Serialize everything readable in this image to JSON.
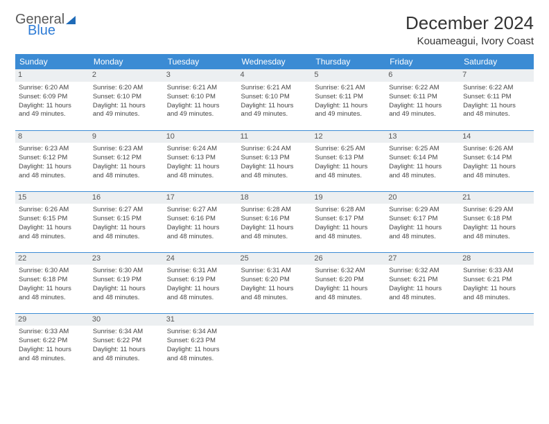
{
  "brand": {
    "word1": "General",
    "word2": "Blue"
  },
  "title": "December 2024",
  "location": "Kouameagui, Ivory Coast",
  "header_bg": "#3b8bd4",
  "daynum_bg": "#eceff1",
  "weekdays": [
    "Sunday",
    "Monday",
    "Tuesday",
    "Wednesday",
    "Thursday",
    "Friday",
    "Saturday"
  ],
  "weeks": [
    [
      {
        "n": "1",
        "sr": "Sunrise: 6:20 AM",
        "ss": "Sunset: 6:09 PM",
        "d1": "Daylight: 11 hours",
        "d2": "and 49 minutes."
      },
      {
        "n": "2",
        "sr": "Sunrise: 6:20 AM",
        "ss": "Sunset: 6:10 PM",
        "d1": "Daylight: 11 hours",
        "d2": "and 49 minutes."
      },
      {
        "n": "3",
        "sr": "Sunrise: 6:21 AM",
        "ss": "Sunset: 6:10 PM",
        "d1": "Daylight: 11 hours",
        "d2": "and 49 minutes."
      },
      {
        "n": "4",
        "sr": "Sunrise: 6:21 AM",
        "ss": "Sunset: 6:10 PM",
        "d1": "Daylight: 11 hours",
        "d2": "and 49 minutes."
      },
      {
        "n": "5",
        "sr": "Sunrise: 6:21 AM",
        "ss": "Sunset: 6:11 PM",
        "d1": "Daylight: 11 hours",
        "d2": "and 49 minutes."
      },
      {
        "n": "6",
        "sr": "Sunrise: 6:22 AM",
        "ss": "Sunset: 6:11 PM",
        "d1": "Daylight: 11 hours",
        "d2": "and 49 minutes."
      },
      {
        "n": "7",
        "sr": "Sunrise: 6:22 AM",
        "ss": "Sunset: 6:11 PM",
        "d1": "Daylight: 11 hours",
        "d2": "and 48 minutes."
      }
    ],
    [
      {
        "n": "8",
        "sr": "Sunrise: 6:23 AM",
        "ss": "Sunset: 6:12 PM",
        "d1": "Daylight: 11 hours",
        "d2": "and 48 minutes."
      },
      {
        "n": "9",
        "sr": "Sunrise: 6:23 AM",
        "ss": "Sunset: 6:12 PM",
        "d1": "Daylight: 11 hours",
        "d2": "and 48 minutes."
      },
      {
        "n": "10",
        "sr": "Sunrise: 6:24 AM",
        "ss": "Sunset: 6:13 PM",
        "d1": "Daylight: 11 hours",
        "d2": "and 48 minutes."
      },
      {
        "n": "11",
        "sr": "Sunrise: 6:24 AM",
        "ss": "Sunset: 6:13 PM",
        "d1": "Daylight: 11 hours",
        "d2": "and 48 minutes."
      },
      {
        "n": "12",
        "sr": "Sunrise: 6:25 AM",
        "ss": "Sunset: 6:13 PM",
        "d1": "Daylight: 11 hours",
        "d2": "and 48 minutes."
      },
      {
        "n": "13",
        "sr": "Sunrise: 6:25 AM",
        "ss": "Sunset: 6:14 PM",
        "d1": "Daylight: 11 hours",
        "d2": "and 48 minutes."
      },
      {
        "n": "14",
        "sr": "Sunrise: 6:26 AM",
        "ss": "Sunset: 6:14 PM",
        "d1": "Daylight: 11 hours",
        "d2": "and 48 minutes."
      }
    ],
    [
      {
        "n": "15",
        "sr": "Sunrise: 6:26 AM",
        "ss": "Sunset: 6:15 PM",
        "d1": "Daylight: 11 hours",
        "d2": "and 48 minutes."
      },
      {
        "n": "16",
        "sr": "Sunrise: 6:27 AM",
        "ss": "Sunset: 6:15 PM",
        "d1": "Daylight: 11 hours",
        "d2": "and 48 minutes."
      },
      {
        "n": "17",
        "sr": "Sunrise: 6:27 AM",
        "ss": "Sunset: 6:16 PM",
        "d1": "Daylight: 11 hours",
        "d2": "and 48 minutes."
      },
      {
        "n": "18",
        "sr": "Sunrise: 6:28 AM",
        "ss": "Sunset: 6:16 PM",
        "d1": "Daylight: 11 hours",
        "d2": "and 48 minutes."
      },
      {
        "n": "19",
        "sr": "Sunrise: 6:28 AM",
        "ss": "Sunset: 6:17 PM",
        "d1": "Daylight: 11 hours",
        "d2": "and 48 minutes."
      },
      {
        "n": "20",
        "sr": "Sunrise: 6:29 AM",
        "ss": "Sunset: 6:17 PM",
        "d1": "Daylight: 11 hours",
        "d2": "and 48 minutes."
      },
      {
        "n": "21",
        "sr": "Sunrise: 6:29 AM",
        "ss": "Sunset: 6:18 PM",
        "d1": "Daylight: 11 hours",
        "d2": "and 48 minutes."
      }
    ],
    [
      {
        "n": "22",
        "sr": "Sunrise: 6:30 AM",
        "ss": "Sunset: 6:18 PM",
        "d1": "Daylight: 11 hours",
        "d2": "and 48 minutes."
      },
      {
        "n": "23",
        "sr": "Sunrise: 6:30 AM",
        "ss": "Sunset: 6:19 PM",
        "d1": "Daylight: 11 hours",
        "d2": "and 48 minutes."
      },
      {
        "n": "24",
        "sr": "Sunrise: 6:31 AM",
        "ss": "Sunset: 6:19 PM",
        "d1": "Daylight: 11 hours",
        "d2": "and 48 minutes."
      },
      {
        "n": "25",
        "sr": "Sunrise: 6:31 AM",
        "ss": "Sunset: 6:20 PM",
        "d1": "Daylight: 11 hours",
        "d2": "and 48 minutes."
      },
      {
        "n": "26",
        "sr": "Sunrise: 6:32 AM",
        "ss": "Sunset: 6:20 PM",
        "d1": "Daylight: 11 hours",
        "d2": "and 48 minutes."
      },
      {
        "n": "27",
        "sr": "Sunrise: 6:32 AM",
        "ss": "Sunset: 6:21 PM",
        "d1": "Daylight: 11 hours",
        "d2": "and 48 minutes."
      },
      {
        "n": "28",
        "sr": "Sunrise: 6:33 AM",
        "ss": "Sunset: 6:21 PM",
        "d1": "Daylight: 11 hours",
        "d2": "and 48 minutes."
      }
    ],
    [
      {
        "n": "29",
        "sr": "Sunrise: 6:33 AM",
        "ss": "Sunset: 6:22 PM",
        "d1": "Daylight: 11 hours",
        "d2": "and 48 minutes."
      },
      {
        "n": "30",
        "sr": "Sunrise: 6:34 AM",
        "ss": "Sunset: 6:22 PM",
        "d1": "Daylight: 11 hours",
        "d2": "and 48 minutes."
      },
      {
        "n": "31",
        "sr": "Sunrise: 6:34 AM",
        "ss": "Sunset: 6:23 PM",
        "d1": "Daylight: 11 hours",
        "d2": "and 48 minutes."
      },
      {
        "n": "",
        "sr": "",
        "ss": "",
        "d1": "",
        "d2": "",
        "empty": true
      },
      {
        "n": "",
        "sr": "",
        "ss": "",
        "d1": "",
        "d2": "",
        "empty": true
      },
      {
        "n": "",
        "sr": "",
        "ss": "",
        "d1": "",
        "d2": "",
        "empty": true
      },
      {
        "n": "",
        "sr": "",
        "ss": "",
        "d1": "",
        "d2": "",
        "empty": true
      }
    ]
  ]
}
